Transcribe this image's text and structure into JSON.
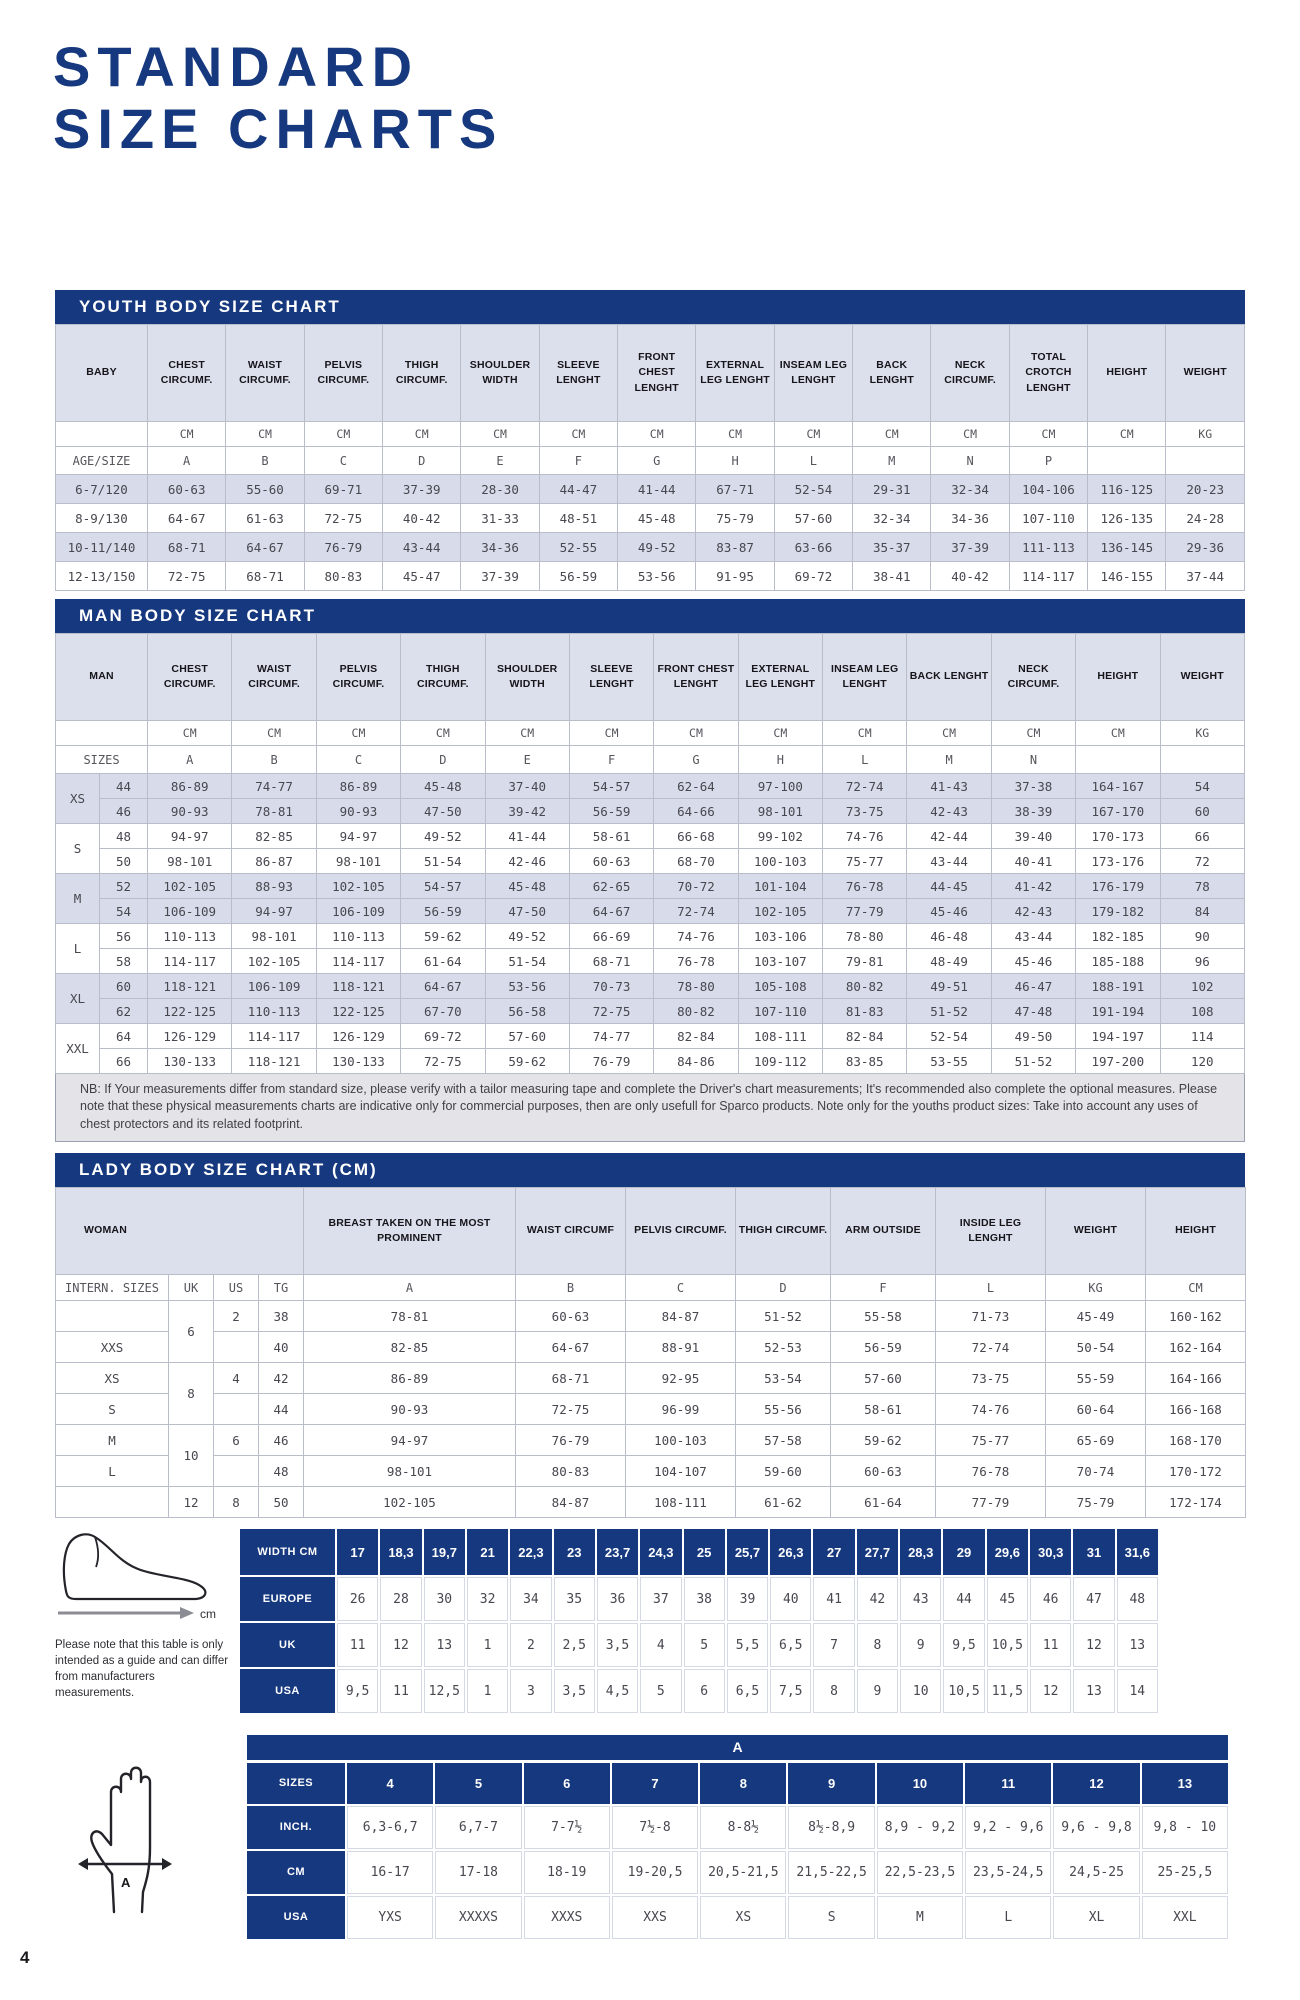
{
  "page": {
    "number": "4",
    "title_line1": "STANDARD",
    "title_line2": "SIZE CHARTS"
  },
  "colors": {
    "navy": "#16387e",
    "header_bg": "#dcdfec",
    "stripe_bg": "#d8dcea",
    "note_bg": "#e4e4e8"
  },
  "youth": {
    "title": "YOUTH BODY SIZE CHART",
    "label": "BABY",
    "columns": [
      "CHEST CIRCUMF.",
      "WAIST CIRCUMF.",
      "PELVIS CIRCUMF.",
      "THIGH CIRCUMF.",
      "SHOULDER WIDTH",
      "SLEEVE LENGHT",
      "FRONT CHEST LENGHT",
      "EXTERNAL LEG LENGHT",
      "INSEAM LEG LENGHT",
      "BACK LENGHT",
      "NECK CIRCUMF.",
      "TOTAL CROTCH LENGHT",
      "HEIGHT",
      "WEIGHT"
    ],
    "units": [
      "CM",
      "CM",
      "CM",
      "CM",
      "CM",
      "CM",
      "CM",
      "CM",
      "CM",
      "CM",
      "CM",
      "CM",
      "CM",
      "KG"
    ],
    "size_row_label": "AGE/SIZE",
    "letters": [
      "A",
      "B",
      "C",
      "D",
      "E",
      "F",
      "G",
      "H",
      "L",
      "M",
      "N",
      "P",
      "",
      ""
    ],
    "rows": [
      {
        "size": "6-7/120",
        "values": [
          "60-63",
          "55-60",
          "69-71",
          "37-39",
          "28-30",
          "44-47",
          "41-44",
          "67-71",
          "52-54",
          "29-31",
          "32-34",
          "104-106",
          "116-125",
          "20-23"
        ]
      },
      {
        "size": "8-9/130",
        "values": [
          "64-67",
          "61-63",
          "72-75",
          "40-42",
          "31-33",
          "48-51",
          "45-48",
          "75-79",
          "57-60",
          "32-34",
          "34-36",
          "107-110",
          "126-135",
          "24-28"
        ]
      },
      {
        "size": "10-11/140",
        "values": [
          "68-71",
          "64-67",
          "76-79",
          "43-44",
          "34-36",
          "52-55",
          "49-52",
          "83-87",
          "63-66",
          "35-37",
          "37-39",
          "111-113",
          "136-145",
          "29-36"
        ]
      },
      {
        "size": "12-13/150",
        "values": [
          "72-75",
          "68-71",
          "80-83",
          "45-47",
          "37-39",
          "56-59",
          "53-56",
          "91-95",
          "69-72",
          "38-41",
          "40-42",
          "114-117",
          "146-155",
          "37-44"
        ]
      }
    ]
  },
  "man": {
    "title": "MAN BODY SIZE CHART",
    "label": "MAN",
    "columns": [
      "CHEST CIRCUMF.",
      "WAIST CIRCUMF.",
      "PELVIS CIRCUMF.",
      "THIGH CIRCUMF.",
      "SHOULDER WIDTH",
      "SLEEVE LENGHT",
      "FRONT CHEST LENGHT",
      "EXTERNAL LEG LENGHT",
      "INSEAM LEG LENGHT",
      "BACK LENGHT",
      "NECK CIRCUMF.",
      "HEIGHT",
      "WEIGHT"
    ],
    "units": [
      "CM",
      "CM",
      "CM",
      "CM",
      "CM",
      "CM",
      "CM",
      "CM",
      "CM",
      "CM",
      "CM",
      "CM",
      "KG"
    ],
    "size_row_label": "SIZES",
    "letters": [
      "A",
      "B",
      "C",
      "D",
      "E",
      "F",
      "G",
      "H",
      "L",
      "M",
      "N",
      "",
      ""
    ],
    "groups": [
      {
        "group": "XS",
        "shaded": true,
        "rows": [
          {
            "size": "44",
            "values": [
              "86-89",
              "74-77",
              "86-89",
              "45-48",
              "37-40",
              "54-57",
              "62-64",
              "97-100",
              "72-74",
              "41-43",
              "37-38",
              "164-167",
              "54"
            ]
          },
          {
            "size": "46",
            "values": [
              "90-93",
              "78-81",
              "90-93",
              "47-50",
              "39-42",
              "56-59",
              "64-66",
              "98-101",
              "73-75",
              "42-43",
              "38-39",
              "167-170",
              "60"
            ]
          }
        ]
      },
      {
        "group": "S",
        "shaded": false,
        "rows": [
          {
            "size": "48",
            "values": [
              "94-97",
              "82-85",
              "94-97",
              "49-52",
              "41-44",
              "58-61",
              "66-68",
              "99-102",
              "74-76",
              "42-44",
              "39-40",
              "170-173",
              "66"
            ]
          },
          {
            "size": "50",
            "values": [
              "98-101",
              "86-87",
              "98-101",
              "51-54",
              "42-46",
              "60-63",
              "68-70",
              "100-103",
              "75-77",
              "43-44",
              "40-41",
              "173-176",
              "72"
            ]
          }
        ]
      },
      {
        "group": "M",
        "shaded": true,
        "rows": [
          {
            "size": "52",
            "values": [
              "102-105",
              "88-93",
              "102-105",
              "54-57",
              "45-48",
              "62-65",
              "70-72",
              "101-104",
              "76-78",
              "44-45",
              "41-42",
              "176-179",
              "78"
            ]
          },
          {
            "size": "54",
            "values": [
              "106-109",
              "94-97",
              "106-109",
              "56-59",
              "47-50",
              "64-67",
              "72-74",
              "102-105",
              "77-79",
              "45-46",
              "42-43",
              "179-182",
              "84"
            ]
          }
        ]
      },
      {
        "group": "L",
        "shaded": false,
        "rows": [
          {
            "size": "56",
            "values": [
              "110-113",
              "98-101",
              "110-113",
              "59-62",
              "49-52",
              "66-69",
              "74-76",
              "103-106",
              "78-80",
              "46-48",
              "43-44",
              "182-185",
              "90"
            ]
          },
          {
            "size": "58",
            "values": [
              "114-117",
              "102-105",
              "114-117",
              "61-64",
              "51-54",
              "68-71",
              "76-78",
              "103-107",
              "79-81",
              "48-49",
              "45-46",
              "185-188",
              "96"
            ]
          }
        ]
      },
      {
        "group": "XL",
        "shaded": true,
        "rows": [
          {
            "size": "60",
            "values": [
              "118-121",
              "106-109",
              "118-121",
              "64-67",
              "53-56",
              "70-73",
              "78-80",
              "105-108",
              "80-82",
              "49-51",
              "46-47",
              "188-191",
              "102"
            ]
          },
          {
            "size": "62",
            "values": [
              "122-125",
              "110-113",
              "122-125",
              "67-70",
              "56-58",
              "72-75",
              "80-82",
              "107-110",
              "81-83",
              "51-52",
              "47-48",
              "191-194",
              "108"
            ]
          }
        ]
      },
      {
        "group": "XXL",
        "shaded": false,
        "rows": [
          {
            "size": "64",
            "values": [
              "126-129",
              "114-117",
              "126-129",
              "69-72",
              "57-60",
              "74-77",
              "82-84",
              "108-111",
              "82-84",
              "52-54",
              "49-50",
              "194-197",
              "114"
            ]
          },
          {
            "size": "66",
            "values": [
              "130-133",
              "118-121",
              "130-133",
              "72-75",
              "59-62",
              "76-79",
              "84-86",
              "109-112",
              "83-85",
              "53-55",
              "51-52",
              "197-200",
              "120"
            ]
          }
        ]
      }
    ],
    "note": "NB: If Your measurements differ from standard size, please verify with a tailor measuring tape and complete the Driver's chart measurements; It's recommended also complete the optional measures. Please note that these physical measurements charts are indicative only for commercial purposes, then are only usefull for Sparco products. Note only for the youths product sizes: Take into account any uses of chest protectors and its related footprint."
  },
  "lady": {
    "title": "LADY BODY SIZE CHART (CM)",
    "label": "WOMAN",
    "columns": [
      "BREAST TAKEN ON THE MOST PROMINENT",
      "WAIST CIRCUMF",
      "PELVIS CIRCUMF.",
      "THIGH CIRCUMF.",
      "ARM OUTSIDE",
      "INSIDE LEG LENGHT",
      "WEIGHT",
      "HEIGHT"
    ],
    "size_row_label": "INTERN. SIZES",
    "uk_label": "UK",
    "us_label": "US",
    "tg_label": "TG",
    "letters": [
      "A",
      "B",
      "C",
      "D",
      "F",
      "L",
      "KG",
      "CM"
    ],
    "rows": [
      {
        "intl": "",
        "uk": "6",
        "uk_span": 2,
        "us": "2",
        "tg": "38",
        "values": [
          "78-81",
          "60-63",
          "84-87",
          "51-52",
          "55-58",
          "71-73",
          "45-49",
          "160-162"
        ]
      },
      {
        "intl": "XXS",
        "us": "",
        "tg": "40",
        "values": [
          "82-85",
          "64-67",
          "88-91",
          "52-53",
          "56-59",
          "72-74",
          "50-54",
          "162-164"
        ]
      },
      {
        "intl": "XS",
        "uk": "8",
        "uk_span": 2,
        "us": "4",
        "tg": "42",
        "values": [
          "86-89",
          "68-71",
          "92-95",
          "53-54",
          "57-60",
          "73-75",
          "55-59",
          "164-166"
        ]
      },
      {
        "intl": "S",
        "us": "",
        "tg": "44",
        "values": [
          "90-93",
          "72-75",
          "96-99",
          "55-56",
          "58-61",
          "74-76",
          "60-64",
          "166-168"
        ]
      },
      {
        "intl": "M",
        "uk": "10",
        "uk_span": 2,
        "us": "6",
        "tg": "46",
        "values": [
          "94-97",
          "76-79",
          "100-103",
          "57-58",
          "59-62",
          "75-77",
          "65-69",
          "168-170"
        ]
      },
      {
        "intl": "L",
        "us": "",
        "tg": "48",
        "values": [
          "98-101",
          "80-83",
          "104-107",
          "59-60",
          "60-63",
          "76-78",
          "70-74",
          "170-172"
        ]
      },
      {
        "intl": "",
        "uk": "12",
        "uk_span": 1,
        "us": "8",
        "tg": "50",
        "values": [
          "102-105",
          "84-87",
          "108-111",
          "61-62",
          "61-64",
          "77-79",
          "75-79",
          "172-174"
        ]
      }
    ]
  },
  "shoes": {
    "note": "Please note that this table is only intended as a guide and can differ from manufacturers measurements.",
    "unit_label": "cm",
    "rows": [
      {
        "label": "WIDTH CM",
        "dark": true,
        "values": [
          "17",
          "18,3",
          "19,7",
          "21",
          "22,3",
          "23",
          "23,7",
          "24,3",
          "25",
          "25,7",
          "26,3",
          "27",
          "27,7",
          "28,3",
          "29",
          "29,6",
          "30,3",
          "31",
          "31,6"
        ]
      },
      {
        "label": "EUROPE",
        "dark": false,
        "values": [
          "26",
          "28",
          "30",
          "32",
          "34",
          "35",
          "36",
          "37",
          "38",
          "39",
          "40",
          "41",
          "42",
          "43",
          "44",
          "45",
          "46",
          "47",
          "48"
        ]
      },
      {
        "label": "UK",
        "dark": false,
        "values": [
          "11",
          "12",
          "13",
          "1",
          "2",
          "2,5",
          "3,5",
          "4",
          "5",
          "5,5",
          "6,5",
          "7",
          "8",
          "9",
          "9,5",
          "10,5",
          "11",
          "12",
          "13"
        ]
      },
      {
        "label": "USA",
        "dark": false,
        "values": [
          "9,5",
          "11",
          "12,5",
          "1",
          "3",
          "3,5",
          "4,5",
          "5",
          "6",
          "6,5",
          "7,5",
          "8",
          "9",
          "10",
          "10,5",
          "11,5",
          "12",
          "13",
          "14"
        ]
      }
    ]
  },
  "gloves": {
    "header": "A",
    "arrow_label": "A",
    "rows": [
      {
        "label": "SIZES",
        "dark": true,
        "values": [
          "4",
          "5",
          "6",
          "7",
          "8",
          "9",
          "10",
          "11",
          "12",
          "13"
        ]
      },
      {
        "label": "INCH.",
        "dark": false,
        "values": [
          "6,3-6,7",
          "6,7-7",
          "7-7½",
          "7½-8",
          "8-8½",
          "8½-8,9",
          "8,9 - 9,2",
          "9,2 - 9,6",
          "9,6 - 9,8",
          "9,8 - 10"
        ]
      },
      {
        "label": "CM",
        "dark": false,
        "values": [
          "16-17",
          "17-18",
          "18-19",
          "19-20,5",
          "20,5-21,5",
          "21,5-22,5",
          "22,5-23,5",
          "23,5-24,5",
          "24,5-25",
          "25-25,5"
        ]
      },
      {
        "label": "USA",
        "dark": false,
        "values": [
          "YXS",
          "XXXXS",
          "XXXS",
          "XXS",
          "XS",
          "S",
          "M",
          "L",
          "XL",
          "XXL"
        ]
      }
    ]
  }
}
